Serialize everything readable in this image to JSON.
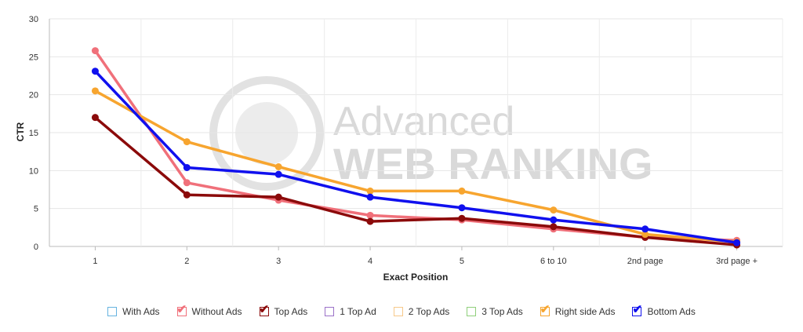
{
  "chart_data": {
    "type": "line",
    "title": "",
    "xlabel": "Exact Position",
    "ylabel": "CTR",
    "categories": [
      "1",
      "2",
      "3",
      "4",
      "5",
      "6 to 10",
      "2nd page",
      "3rd page +"
    ],
    "ylim": [
      0,
      30
    ],
    "yticks": [
      "0",
      "5",
      "10",
      "15",
      "20",
      "25",
      "30"
    ],
    "grid": true,
    "legend_position": "bottom",
    "series": [
      {
        "name": "Without Ads",
        "color": "#f0707a",
        "values": [
          25.8,
          8.4,
          6.1,
          4.1,
          3.5,
          2.3,
          1.2,
          0.8
        ]
      },
      {
        "name": "Top Ads",
        "color": "#8b0a0a",
        "values": [
          17.0,
          6.8,
          6.5,
          3.3,
          3.7,
          2.6,
          1.2,
          0.2
        ]
      },
      {
        "name": "Right side Ads",
        "color": "#f7a52f",
        "values": [
          20.5,
          13.8,
          10.5,
          7.3,
          7.3,
          4.8,
          1.6,
          0.6
        ]
      },
      {
        "name": "Bottom Ads",
        "color": "#1010ee",
        "values": [
          23.1,
          10.4,
          9.5,
          6.5,
          5.1,
          3.5,
          2.3,
          0.5
        ]
      }
    ]
  },
  "watermark": {
    "line1": "Advanced",
    "line2": "WEB RANKING"
  },
  "legend": [
    {
      "label": "With Ads",
      "color": "#66b3e0",
      "checked": false
    },
    {
      "label": "Without Ads",
      "color": "#f0707a",
      "checked": true
    },
    {
      "label": "Top Ads",
      "color": "#8b0a0a",
      "checked": true
    },
    {
      "label": "1 Top Ad",
      "color": "#9b72c8",
      "checked": false
    },
    {
      "label": "2 Top Ads",
      "color": "#f7c98a",
      "checked": false
    },
    {
      "label": "3 Top Ads",
      "color": "#8fcf7a",
      "checked": false
    },
    {
      "label": "Right side Ads",
      "color": "#f7a52f",
      "checked": true
    },
    {
      "label": "Bottom Ads",
      "color": "#1010ee",
      "checked": true
    }
  ]
}
